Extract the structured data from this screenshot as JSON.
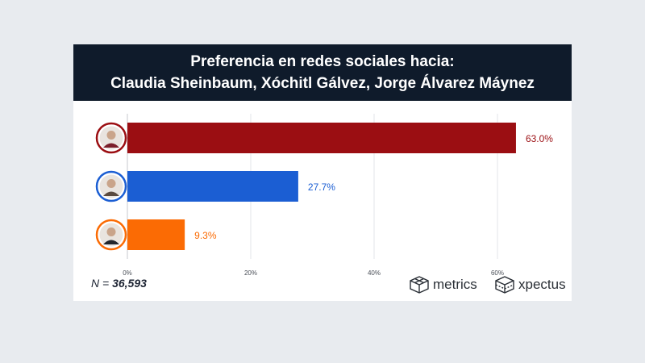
{
  "header": {
    "title_line1": "Preferencia en redes sociales hacia:",
    "title_line2": "Claudia Sheinbaum, Xóchitl Gálvez, Jorge Álvarez Máynez"
  },
  "sample": {
    "prefix": "N = ",
    "value": "36,593"
  },
  "logos": {
    "metrics": "metrics",
    "xpectus": "xpectus"
  },
  "chart_data": {
    "type": "bar",
    "orientation": "horizontal",
    "title": "Preferencia en redes sociales hacia: Claudia Sheinbaum, Xóchitl Gálvez, Jorge Álvarez Máynez",
    "xlabel": "",
    "ylabel": "",
    "xlim": [
      0,
      60
    ],
    "ticks": [
      "0%",
      "20%",
      "40%",
      "60%"
    ],
    "tick_values": [
      0,
      20,
      40,
      60
    ],
    "grid": true,
    "legend": "none",
    "categories": [
      "Claudia Sheinbaum",
      "Xóchitl Gálvez",
      "Jorge Álvarez Máynez"
    ],
    "values": [
      63.0,
      27.7,
      9.3
    ],
    "value_labels": [
      "63.0%",
      "27.7%",
      "9.3%"
    ],
    "colors": [
      "#9b0e12",
      "#1b5ed3",
      "#fb6b04"
    ],
    "avatar_icons": [
      "person-avatar-icon",
      "person-avatar-icon",
      "person-avatar-icon"
    ]
  }
}
